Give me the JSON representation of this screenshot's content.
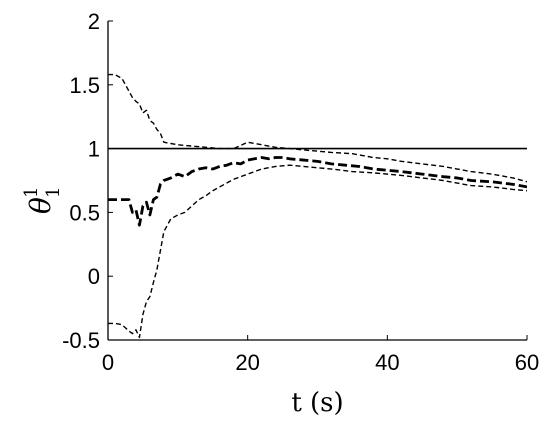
{
  "chart_data": {
    "type": "line",
    "title": "",
    "xlabel": "t (s)",
    "ylabel_symbol": "θ",
    "ylabel_superscript": "1",
    "ylabel_subscript": "1",
    "xlim": [
      0,
      60
    ],
    "ylim": [
      -0.5,
      2
    ],
    "xticks": [
      0,
      20,
      40,
      60
    ],
    "yticks": [
      -0.5,
      0,
      0.5,
      1,
      1.5,
      2
    ],
    "xtick_labels": [
      "0",
      "20",
      "40",
      "60"
    ],
    "ytick_labels": [
      "-0.5",
      "0",
      "0.5",
      "1",
      "1.5",
      "2"
    ],
    "grid": false,
    "legend": "none",
    "series": [
      {
        "style": "solid-thin",
        "color": "#000000",
        "x": [
          0,
          60
        ],
        "y": [
          1,
          1
        ]
      },
      {
        "style": "dashed-bold",
        "color": "#000000",
        "x": [
          0,
          1,
          2,
          3,
          3.5,
          4,
          4.5,
          5,
          5.5,
          6,
          6.5,
          7,
          7.5,
          8,
          9,
          10,
          11,
          12,
          13,
          14,
          15,
          16,
          17,
          18,
          19,
          20,
          21,
          22,
          23,
          24,
          25,
          26,
          28,
          30,
          32,
          34,
          36,
          38,
          40,
          42,
          45,
          48,
          50,
          52,
          55,
          58,
          60
        ],
        "y": [
          0.6,
          0.6,
          0.6,
          0.6,
          0.5,
          0.52,
          0.4,
          0.55,
          0.58,
          0.48,
          0.6,
          0.62,
          0.72,
          0.75,
          0.77,
          0.8,
          0.78,
          0.82,
          0.84,
          0.85,
          0.84,
          0.86,
          0.87,
          0.89,
          0.88,
          0.91,
          0.92,
          0.93,
          0.92,
          0.93,
          0.93,
          0.92,
          0.91,
          0.9,
          0.88,
          0.87,
          0.86,
          0.84,
          0.83,
          0.82,
          0.8,
          0.78,
          0.77,
          0.75,
          0.74,
          0.72,
          0.7
        ]
      },
      {
        "style": "dashed-upper",
        "color": "#000000",
        "x": [
          0,
          1,
          2,
          3,
          3.5,
          4,
          4.5,
          5,
          5.5,
          6,
          6.5,
          7,
          7.5,
          8,
          9,
          10,
          12,
          14,
          16,
          18,
          20,
          22,
          24,
          26,
          28,
          30,
          32,
          35,
          38,
          40,
          42,
          45,
          48,
          50,
          52,
          55,
          58,
          60
        ],
        "y": [
          1.58,
          1.58,
          1.55,
          1.45,
          1.4,
          1.37,
          1.35,
          1.28,
          1.3,
          1.22,
          1.2,
          1.15,
          1.12,
          1.05,
          1.04,
          1.03,
          1.02,
          1.01,
          1.0,
          1.0,
          1.05,
          1.03,
          1.01,
          1.0,
          0.99,
          0.98,
          0.97,
          0.96,
          0.93,
          0.92,
          0.9,
          0.88,
          0.86,
          0.84,
          0.82,
          0.8,
          0.77,
          0.74
        ]
      },
      {
        "style": "dashed-lower",
        "color": "#000000",
        "x": [
          0,
          1,
          2,
          3,
          3.5,
          4,
          4.5,
          5,
          5.5,
          6,
          6.5,
          7,
          7.5,
          8,
          9,
          10,
          11,
          12,
          13,
          14,
          15,
          16,
          17,
          18,
          19,
          20,
          22,
          24,
          26,
          28,
          30,
          32,
          35,
          38,
          40,
          42,
          45,
          48,
          50,
          52,
          55,
          58,
          60
        ],
        "y": [
          -0.37,
          -0.37,
          -0.38,
          -0.43,
          -0.45,
          -0.42,
          -0.48,
          -0.3,
          -0.2,
          -0.16,
          -0.05,
          0.05,
          0.2,
          0.35,
          0.45,
          0.48,
          0.5,
          0.55,
          0.6,
          0.63,
          0.67,
          0.7,
          0.73,
          0.76,
          0.78,
          0.8,
          0.84,
          0.86,
          0.87,
          0.86,
          0.85,
          0.84,
          0.82,
          0.81,
          0.8,
          0.79,
          0.77,
          0.75,
          0.73,
          0.71,
          0.7,
          0.68,
          0.67
        ]
      }
    ]
  }
}
